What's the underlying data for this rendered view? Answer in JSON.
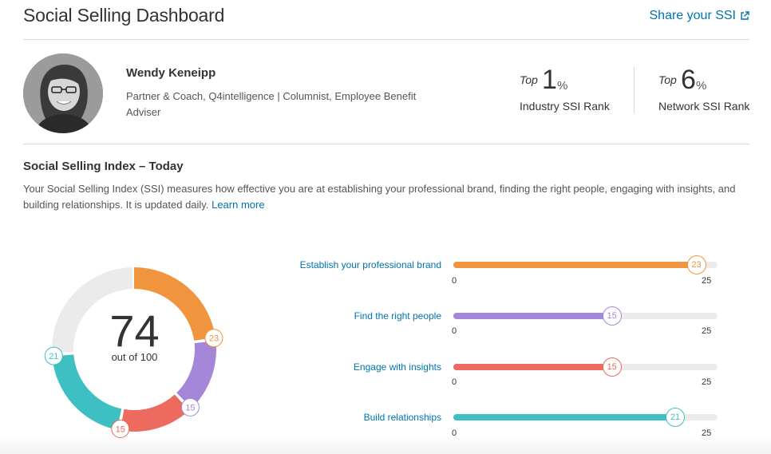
{
  "header": {
    "title": "Social Selling Dashboard",
    "share_label": "Share your SSI",
    "share_icon": "external-link-icon"
  },
  "profile": {
    "name": "Wendy Keneipp",
    "headline": "Partner & Coach, Q4intelligence | Columnist, Employee Benefit Adviser",
    "ranks": [
      {
        "top_word": "Top",
        "value": "1",
        "unit": "%",
        "label": "Industry SSI Rank"
      },
      {
        "top_word": "Top",
        "value": "6",
        "unit": "%",
        "label": "Network SSI Rank"
      }
    ]
  },
  "ssi": {
    "title": "Social Selling Index – Today",
    "description": "Your Social Selling Index (SSI) measures how effective you are at establishing your professional brand, finding the right people, engaging with insights, and building relationships. It is updated daily.",
    "learn_more": "Learn more",
    "score": "74",
    "score_sub": "out of 100",
    "max_total": 100,
    "pillar_max": 25,
    "axis_min_label": "0",
    "axis_max_label": "25",
    "remaining_color": "#ebebeb",
    "pillars": [
      {
        "label": "Establish your professional brand",
        "value": 23,
        "value_label": "23",
        "color": "#f0943d"
      },
      {
        "label": "Find the right people",
        "value": 15,
        "value_label": "15",
        "color": "#a487d9"
      },
      {
        "label": "Engage with insights",
        "value": 15,
        "value_label": "15",
        "color": "#ec6a5e"
      },
      {
        "label": "Build relationships",
        "value": 21,
        "value_label": "21",
        "color": "#3ec0c2"
      }
    ]
  }
}
